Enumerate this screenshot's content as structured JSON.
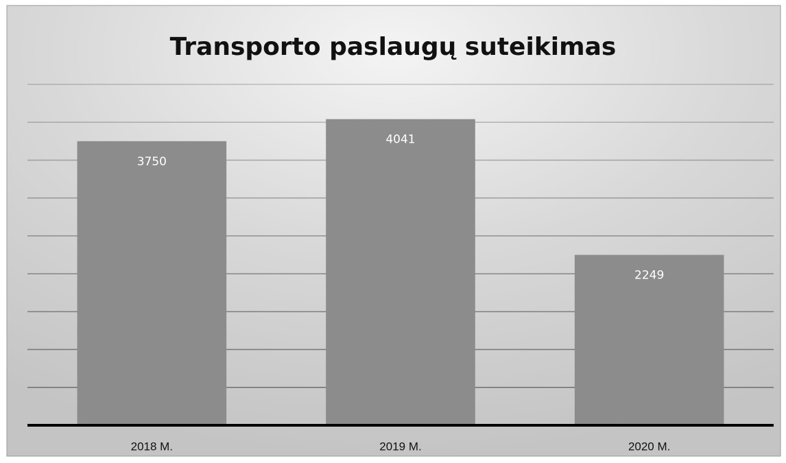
{
  "chart_data": {
    "type": "bar",
    "title": "Transporto paslaugų suteikimas",
    "categories": [
      "2018 M.",
      "2019 M.",
      "2020 M."
    ],
    "values": [
      3750,
      4041,
      2249
    ],
    "color": "#8c8c8c",
    "ylim": [
      0,
      4500
    ],
    "yticks": [
      0,
      500,
      1000,
      1500,
      2000,
      2500,
      3000,
      3500,
      4000,
      4500
    ],
    "grid": true
  }
}
